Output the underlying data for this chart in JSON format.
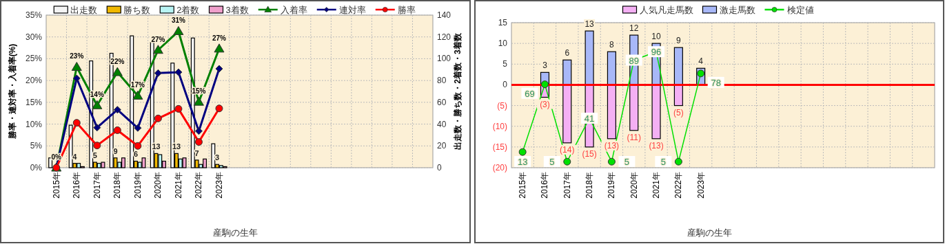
{
  "chart_data": [
    {
      "type": "bar",
      "xlabel": "産駒の生年",
      "ylabel": "勝率・連対率・入着率(%)",
      "y2label": "出走数・勝ち数・2着数・3着数",
      "grid": true,
      "legend": "top",
      "categories": [
        "2015年",
        "2016年",
        "2017年",
        "2018年",
        "2019年",
        "2020年",
        "2021年",
        "2022年",
        "2023年",
        null,
        null,
        null,
        null,
        null,
        null,
        null,
        null,
        null,
        null
      ],
      "ylim": [
        0,
        35
      ],
      "yticks": [
        {
          "value": 0,
          "label": "0%"
        },
        {
          "value": 5,
          "label": "5%"
        },
        {
          "value": 10,
          "label": "10%"
        },
        {
          "value": 15,
          "label": "15%"
        },
        {
          "value": 20,
          "label": "20%"
        },
        {
          "value": 25,
          "label": "25%"
        },
        {
          "value": 30,
          "label": "30%"
        },
        {
          "value": 35,
          "label": "35%"
        }
      ],
      "y2lim": [
        0,
        140
      ],
      "y2ticks": [
        0,
        20,
        40,
        60,
        80,
        100,
        120,
        140
      ],
      "series": [
        {
          "name": "出走数",
          "axis": "y2",
          "color": "#f4f4f4",
          "values": [
            9,
            39,
            98,
            105,
            121,
            115,
            96,
            119,
            22,
            null,
            null,
            null,
            null,
            null,
            null,
            null,
            null,
            null,
            null
          ]
        },
        {
          "name": "勝ち数",
          "axis": "y2",
          "color": "#f0b800",
          "values": [
            0,
            4,
            5,
            9,
            6,
            13,
            13,
            7,
            3,
            null,
            null,
            null,
            null,
            null,
            null,
            null,
            null,
            null,
            null
          ],
          "value_labels": [
            null,
            "4",
            "5",
            "9",
            "6",
            "13",
            "13",
            "7",
            "3",
            null,
            null,
            null,
            null,
            null,
            null,
            null,
            null,
            null,
            null
          ]
        },
        {
          "name": "2着数",
          "axis": "y2",
          "color": "#b8f4f4",
          "values": [
            0,
            4,
            4,
            5,
            5,
            12,
            8,
            3,
            2,
            null,
            null,
            null,
            null,
            null,
            null,
            null,
            null,
            null,
            null
          ]
        },
        {
          "name": "3着数",
          "axis": "y2",
          "color": "#f0a0cc",
          "values": [
            0,
            1,
            5,
            9,
            9,
            6,
            9,
            8,
            1,
            null,
            null,
            null,
            null,
            null,
            null,
            null,
            null,
            null,
            null
          ]
        },
        {
          "name": "入着率",
          "type": "line",
          "color": "#008000",
          "marker": "triangle",
          "values": [
            0,
            23.1,
            14.3,
            21.9,
            16.5,
            27.0,
            31.3,
            15.1,
            27.3,
            null,
            null,
            null,
            null,
            null,
            null,
            null,
            null,
            null,
            null
          ],
          "value_labels": [
            "0%",
            "23%",
            "14%",
            "22%",
            "17%",
            "27%",
            "31%",
            "15%",
            "27%",
            null,
            null,
            null,
            null,
            null,
            null,
            null,
            null,
            null,
            null
          ]
        },
        {
          "name": "連対率",
          "type": "line",
          "color": "#000080",
          "marker": "diamond",
          "values": [
            0,
            20.5,
            9.2,
            13.3,
            9.1,
            21.7,
            21.9,
            8.4,
            22.7,
            null,
            null,
            null,
            null,
            null,
            null,
            null,
            null,
            null,
            null
          ]
        },
        {
          "name": "勝率",
          "type": "line",
          "color": "#ff0000",
          "marker": "circle",
          "values": [
            0,
            10.3,
            5.1,
            8.6,
            5.0,
            11.3,
            13.5,
            5.9,
            13.6,
            null,
            null,
            null,
            null,
            null,
            null,
            null,
            null,
            null,
            null
          ]
        }
      ]
    },
    {
      "type": "bar",
      "stacked": true,
      "xlabel": "産駒の生年",
      "grid": true,
      "legend": "top",
      "data_labels": true,
      "categories": [
        "2015年",
        "2016年",
        "2017年",
        "2018年",
        "2019年",
        "2020年",
        "2021年",
        "2022年",
        "2023年",
        null,
        null,
        null,
        null,
        null,
        null,
        null,
        null,
        null,
        null
      ],
      "ylim": [
        -20,
        15
      ],
      "yticks": [
        15,
        10,
        5,
        0,
        {
          "value": -5,
          "label": "(5)"
        },
        {
          "value": -10,
          "label": "(10)"
        },
        {
          "value": -15,
          "label": "(15)"
        },
        {
          "value": -20,
          "label": "(20)"
        }
      ],
      "y2lim": [
        0,
        120
      ],
      "ref_lines": [
        {
          "axis": "y",
          "value": 0,
          "color": "#ff0000"
        }
      ],
      "series": [
        {
          "name": "人気凡走馬数",
          "color": "#f4b0f4",
          "values": [
            0,
            -3,
            -14,
            -15,
            -13,
            -11,
            -13,
            -5,
            0,
            null,
            null,
            null,
            null,
            null,
            null,
            null,
            null,
            null,
            null
          ],
          "value_labels": [
            null,
            "(3)",
            "(14)",
            "(15)",
            "(13)",
            "(11)",
            "(13)",
            "(5)",
            null,
            null,
            null,
            null,
            null,
            null,
            null,
            null,
            null,
            null,
            null
          ]
        },
        {
          "name": "激走馬数",
          "color": "#a8b8f8",
          "values": [
            0,
            3,
            6,
            13,
            8,
            12,
            10,
            9,
            4,
            null,
            null,
            null,
            null,
            null,
            null,
            null,
            null,
            null,
            null
          ],
          "value_labels": [
            null,
            "3",
            "6",
            "13",
            "8",
            "12",
            "10",
            "9",
            "4",
            null,
            null,
            null,
            null,
            null,
            null,
            null,
            null,
            null,
            null
          ]
        },
        {
          "name": "検定値",
          "type": "line",
          "axis": "y2",
          "color": "#00e000",
          "marker": "circle",
          "values": [
            13,
            69,
            5,
            41,
            5,
            89,
            96,
            5,
            78,
            null,
            null,
            null,
            null,
            null,
            null,
            null,
            null,
            null,
            null
          ]
        }
      ]
    }
  ]
}
